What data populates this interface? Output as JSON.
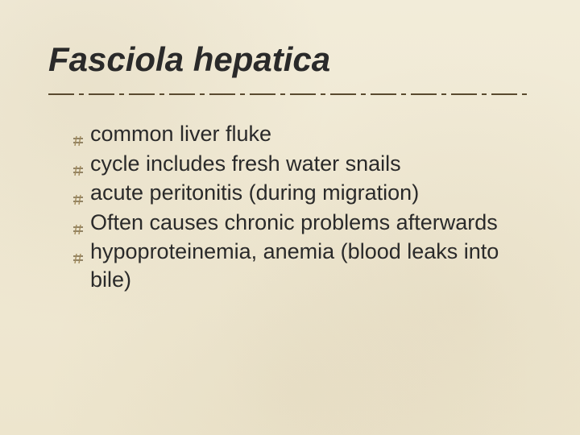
{
  "slide": {
    "title": "Fasciola hepatica",
    "title_fontsize": 42,
    "title_color": "#2a2a2a",
    "title_style": "italic",
    "bullets": [
      "common liver fluke",
      "cycle includes fresh water snails",
      "acute peritonitis (during migration)",
      "Often causes chronic problems afterwards",
      "hypoproteinemia, anemia (blood leaks into bile)"
    ],
    "bullet_fontsize": 27,
    "bullet_color": "#2a2a2a",
    "bullet_icon_color": "#6b5a3a",
    "bullet_icon_accent": "#a0895a",
    "background_color": "#f0ead6",
    "divider": {
      "long_color": "#5a4a2f",
      "short_color": "#5a4a2f",
      "stroke_width": 2,
      "pattern_long": 32,
      "pattern_short": 6,
      "pattern_gap": 6
    }
  }
}
